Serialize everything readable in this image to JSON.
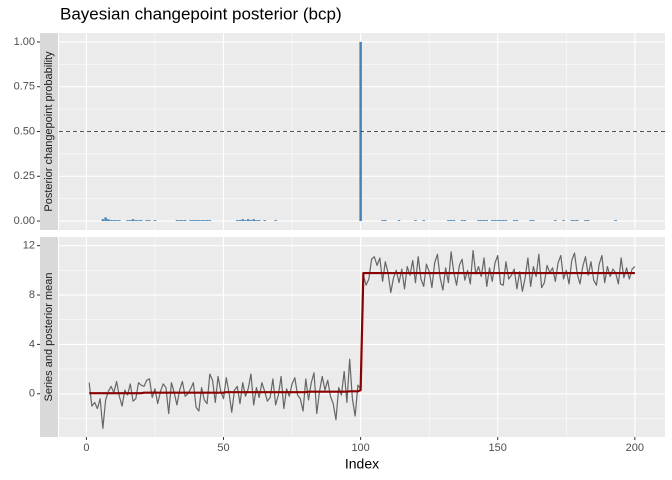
{
  "chart_data": [
    {
      "type": "bar",
      "title": "Bayesian changepoint posterior (bcp)",
      "strip_label": "Posterior changepoint probability",
      "color": "#4682b4",
      "hline": 0.5,
      "xlim": [
        -10,
        211
      ],
      "xticks": [
        0,
        50,
        100,
        150,
        200
      ],
      "xminor": [
        25,
        75,
        125,
        175
      ],
      "ylim": [
        -0.05,
        1.05
      ],
      "yticks": [
        {
          "value": 0,
          "label": "0.00"
        },
        {
          "value": 0.25,
          "label": "0.25"
        },
        {
          "value": 0.5,
          "label": "0.50"
        },
        {
          "value": 0.75,
          "label": "0.75"
        },
        {
          "value": 1,
          "label": "1.00"
        }
      ],
      "yminor": [
        0.125,
        0.375,
        0.625,
        0.875
      ],
      "x": [
        1,
        2,
        3,
        4,
        5,
        6,
        7,
        8,
        9,
        10,
        11,
        12,
        13,
        14,
        15,
        16,
        17,
        18,
        19,
        20,
        21,
        22,
        23,
        24,
        25,
        26,
        27,
        28,
        29,
        30,
        31,
        32,
        33,
        34,
        35,
        36,
        37,
        38,
        39,
        40,
        41,
        42,
        43,
        44,
        45,
        46,
        47,
        48,
        49,
        50,
        51,
        52,
        53,
        54,
        55,
        56,
        57,
        58,
        59,
        60,
        61,
        62,
        63,
        64,
        65,
        66,
        67,
        68,
        69,
        70,
        71,
        72,
        73,
        74,
        75,
        76,
        77,
        78,
        79,
        80,
        81,
        82,
        83,
        84,
        85,
        86,
        87,
        88,
        89,
        90,
        91,
        92,
        93,
        94,
        95,
        96,
        97,
        98,
        99,
        100,
        101,
        102,
        103,
        104,
        105,
        106,
        107,
        108,
        109,
        110,
        111,
        112,
        113,
        114,
        115,
        116,
        117,
        118,
        119,
        120,
        121,
        122,
        123,
        124,
        125,
        126,
        127,
        128,
        129,
        130,
        131,
        132,
        133,
        134,
        135,
        136,
        137,
        138,
        139,
        140,
        141,
        142,
        143,
        144,
        145,
        146,
        147,
        148,
        149,
        150,
        151,
        152,
        153,
        154,
        155,
        156,
        157,
        158,
        159,
        160,
        161,
        162,
        163,
        164,
        165,
        166,
        167,
        168,
        169,
        170,
        171,
        172,
        173,
        174,
        175,
        176,
        177,
        178,
        179,
        180,
        181,
        182,
        183,
        184,
        185,
        186,
        187,
        188,
        189,
        190,
        191,
        192,
        193,
        194,
        195,
        196,
        197,
        198,
        199,
        200
      ],
      "values": [
        0,
        0,
        0,
        0,
        0,
        0.01,
        0.02,
        0.01,
        0.005,
        0.005,
        0.005,
        0.005,
        0,
        0,
        0.005,
        0.005,
        0.01,
        0.005,
        0.005,
        0.005,
        0,
        0.005,
        0.005,
        0,
        0.005,
        0,
        0,
        0,
        0,
        0,
        0,
        0,
        0.005,
        0.005,
        0.005,
        0.005,
        0,
        0.005,
        0.005,
        0.005,
        0.005,
        0.005,
        0.005,
        0.005,
        0.005,
        0,
        0,
        0,
        0,
        0,
        0,
        0,
        0,
        0,
        0.005,
        0.005,
        0.01,
        0.005,
        0.01,
        0.005,
        0.01,
        0.005,
        0.005,
        0,
        0.005,
        0,
        0,
        0,
        0.005,
        0,
        0,
        0,
        0,
        0,
        0,
        0,
        0,
        0,
        0,
        0,
        0,
        0,
        0,
        0,
        0,
        0,
        0,
        0,
        0,
        0,
        0,
        0,
        0,
        0,
        0,
        0,
        0,
        0,
        0,
        1.0,
        0,
        0,
        0,
        0,
        0,
        0,
        0,
        0.005,
        0.005,
        0,
        0,
        0,
        0,
        0.005,
        0,
        0,
        0,
        0,
        0,
        0.005,
        0,
        0,
        0.005,
        0,
        0,
        0,
        0,
        0,
        0,
        0,
        0,
        0.005,
        0.005,
        0.005,
        0,
        0,
        0.005,
        0.005,
        0,
        0,
        0,
        0,
        0.005,
        0.005,
        0.005,
        0.005,
        0,
        0.005,
        0.005,
        0.005,
        0.005,
        0.005,
        0.005,
        0,
        0,
        0.005,
        0.005,
        0,
        0,
        0,
        0,
        0.005,
        0.005,
        0,
        0,
        0,
        0,
        0,
        0,
        0,
        0.005,
        0,
        0,
        0.005,
        0,
        0,
        0.005,
        0.005,
        0.005,
        0,
        0,
        0.005,
        0.005,
        0,
        0,
        0,
        0,
        0,
        0,
        0,
        0,
        0,
        0.005,
        0,
        0,
        0,
        0,
        0,
        0,
        0
      ]
    },
    {
      "type": "line",
      "strip_label": "Series and posterior mean",
      "xlabel": "Index",
      "xlim": [
        -10,
        211
      ],
      "xticks": [
        0,
        50,
        100,
        150,
        200
      ],
      "xminor": [
        25,
        75,
        125,
        175
      ],
      "ylim": [
        -3.5,
        12.7
      ],
      "yticks": [
        0,
        4,
        8,
        12
      ],
      "yminor": [
        -2,
        2,
        6,
        10
      ],
      "x": [
        1,
        2,
        3,
        4,
        5,
        6,
        7,
        8,
        9,
        10,
        11,
        12,
        13,
        14,
        15,
        16,
        17,
        18,
        19,
        20,
        21,
        22,
        23,
        24,
        25,
        26,
        27,
        28,
        29,
        30,
        31,
        32,
        33,
        34,
        35,
        36,
        37,
        38,
        39,
        40,
        41,
        42,
        43,
        44,
        45,
        46,
        47,
        48,
        49,
        50,
        51,
        52,
        53,
        54,
        55,
        56,
        57,
        58,
        59,
        60,
        61,
        62,
        63,
        64,
        65,
        66,
        67,
        68,
        69,
        70,
        71,
        72,
        73,
        74,
        75,
        76,
        77,
        78,
        79,
        80,
        81,
        82,
        83,
        84,
        85,
        86,
        87,
        88,
        89,
        90,
        91,
        92,
        93,
        94,
        95,
        96,
        97,
        98,
        99,
        100,
        101,
        102,
        103,
        104,
        105,
        106,
        107,
        108,
        109,
        110,
        111,
        112,
        113,
        114,
        115,
        116,
        117,
        118,
        119,
        120,
        121,
        122,
        123,
        124,
        125,
        126,
        127,
        128,
        129,
        130,
        131,
        132,
        133,
        134,
        135,
        136,
        137,
        138,
        139,
        140,
        141,
        142,
        143,
        144,
        145,
        146,
        147,
        148,
        149,
        150,
        151,
        152,
        153,
        154,
        155,
        156,
        157,
        158,
        159,
        160,
        161,
        162,
        163,
        164,
        165,
        166,
        167,
        168,
        169,
        170,
        171,
        172,
        173,
        174,
        175,
        176,
        177,
        178,
        179,
        180,
        181,
        182,
        183,
        184,
        185,
        186,
        187,
        188,
        189,
        190,
        191,
        192,
        193,
        194,
        195,
        196,
        197,
        198,
        199,
        200
      ],
      "series": [
        {
          "color": "#666666",
          "width": 1.2,
          "values": [
            0.9,
            -1.0,
            -0.7,
            -1.2,
            -0.4,
            -2.8,
            -0.5,
            0.2,
            0.6,
            0.1,
            1.0,
            -0.2,
            -1.0,
            0.3,
            -0.1,
            0.8,
            -0.6,
            -0.4,
            0.9,
            0.7,
            0.6,
            1.1,
            1.2,
            -0.3,
            0.4,
            -0.8,
            0.2,
            0.8,
            0.5,
            -1.6,
            0.9,
            0.1,
            -0.9,
            0.3,
            1.0,
            -0.2,
            0.0,
            0.4,
            0.9,
            -1.1,
            -1.4,
            0.5,
            -0.5,
            -0.8,
            1.6,
            1.1,
            -0.7,
            1.4,
            0.2,
            -0.4,
            1.3,
            0.1,
            -1.5,
            0.3,
            0.6,
            -0.8,
            0.9,
            -0.2,
            0.4,
            1.6,
            -0.9,
            0.5,
            -0.3,
            0.9,
            0.2,
            -0.6,
            -0.3,
            1.2,
            -0.9,
            -0.1,
            1.4,
            -1.2,
            0.4,
            -0.2,
            0.8,
            1.3,
            -0.1,
            -0.4,
            -1.4,
            1.2,
            -0.5,
            0.9,
            1.7,
            -1.6,
            0.2,
            1.4,
            0.3,
            1.1,
            -0.2,
            -0.8,
            -2.1,
            0.5,
            -0.1,
            1.8,
            -0.7,
            2.8,
            -0.4,
            -1.8,
            0.7,
            0.4,
            9.6,
            8.8,
            9.3,
            10.9,
            11.1,
            10.4,
            11.0,
            9.1,
            10.7,
            9.8,
            8.2,
            9.4,
            10.0,
            9.0,
            10.1,
            8.5,
            10.3,
            9.6,
            10.8,
            9.0,
            11.1,
            9.3,
            8.7,
            10.5,
            9.9,
            8.6,
            10.6,
            11.3,
            9.4,
            8.4,
            10.2,
            9.0,
            11.5,
            9.8,
            8.8,
            10.4,
            10.9,
            9.2,
            10.0,
            8.9,
            11.6,
            9.7,
            10.3,
            9.5,
            11.0,
            8.7,
            10.2,
            9.1,
            10.6,
            11.2,
            8.9,
            8.8,
            10.7,
            9.3,
            9.6,
            10.1,
            8.5,
            9.9,
            8.3,
            9.4,
            11.0,
            8.7,
            10.3,
            9.5,
            11.3,
            8.6,
            9.0,
            10.4,
            9.8,
            10.2,
            9.1,
            10.6,
            11.2,
            9.3,
            10.0,
            8.9,
            10.8,
            11.4,
            9.7,
            8.9,
            10.3,
            11.1,
            9.6,
            10.7,
            9.2,
            8.8,
            10.5,
            11.2,
            9.0,
            10.3,
            9.5,
            10.1,
            9.8,
            8.9,
            11.0,
            9.4,
            10.2,
            9.3,
            10.1,
            10.3
          ]
        },
        {
          "color": "#8b0000",
          "width": 2.2,
          "values": [
            0.05,
            0.05,
            0.05,
            0.05,
            0.05,
            0.05,
            0.05,
            0.05,
            0.05,
            0.05,
            0.05,
            0.05,
            0.05,
            0.05,
            0.05,
            0.05,
            0.05,
            0.05,
            0.05,
            0.05,
            0.09,
            0.09,
            0.09,
            0.09,
            0.09,
            0.09,
            0.09,
            0.09,
            0.09,
            0.09,
            0.09,
            0.09,
            0.09,
            0.09,
            0.09,
            0.09,
            0.09,
            0.09,
            0.09,
            0.09,
            0.09,
            0.09,
            0.09,
            0.09,
            0.09,
            0.09,
            0.09,
            0.09,
            0.09,
            0.09,
            0.13,
            0.13,
            0.13,
            0.13,
            0.13,
            0.13,
            0.13,
            0.13,
            0.13,
            0.13,
            0.13,
            0.13,
            0.13,
            0.13,
            0.13,
            0.13,
            0.13,
            0.13,
            0.13,
            0.13,
            0.13,
            0.13,
            0.13,
            0.13,
            0.13,
            0.13,
            0.13,
            0.13,
            0.13,
            0.13,
            0.17,
            0.17,
            0.17,
            0.17,
            0.17,
            0.17,
            0.17,
            0.17,
            0.17,
            0.17,
            0.17,
            0.17,
            0.17,
            0.17,
            0.17,
            0.2,
            0.2,
            0.2,
            0.2,
            0.3,
            9.78,
            9.78,
            9.78,
            9.78,
            9.78,
            9.78,
            9.78,
            9.78,
            9.78,
            9.78,
            9.78,
            9.78,
            9.78,
            9.78,
            9.78,
            9.78,
            9.78,
            9.78,
            9.78,
            9.78,
            9.78,
            9.78,
            9.78,
            9.78,
            9.78,
            9.78,
            9.78,
            9.78,
            9.78,
            9.78,
            9.78,
            9.78,
            9.78,
            9.78,
            9.78,
            9.78,
            9.78,
            9.78,
            9.78,
            9.78,
            9.78,
            9.78,
            9.78,
            9.78,
            9.78,
            9.78,
            9.78,
            9.78,
            9.78,
            9.78,
            9.78,
            9.78,
            9.78,
            9.78,
            9.78,
            9.78,
            9.78,
            9.78,
            9.78,
            9.78,
            9.78,
            9.78,
            9.78,
            9.78,
            9.78,
            9.78,
            9.78,
            9.78,
            9.78,
            9.78,
            9.78,
            9.78,
            9.78,
            9.78,
            9.78,
            9.78,
            9.78,
            9.78,
            9.78,
            9.78,
            9.78,
            9.78,
            9.78,
            9.78,
            9.78,
            9.78,
            9.78,
            9.78,
            9.78,
            9.78,
            9.78,
            9.78,
            9.78,
            9.78,
            9.78,
            9.78,
            9.78,
            9.78,
            9.78,
            9.78
          ]
        }
      ]
    }
  ]
}
